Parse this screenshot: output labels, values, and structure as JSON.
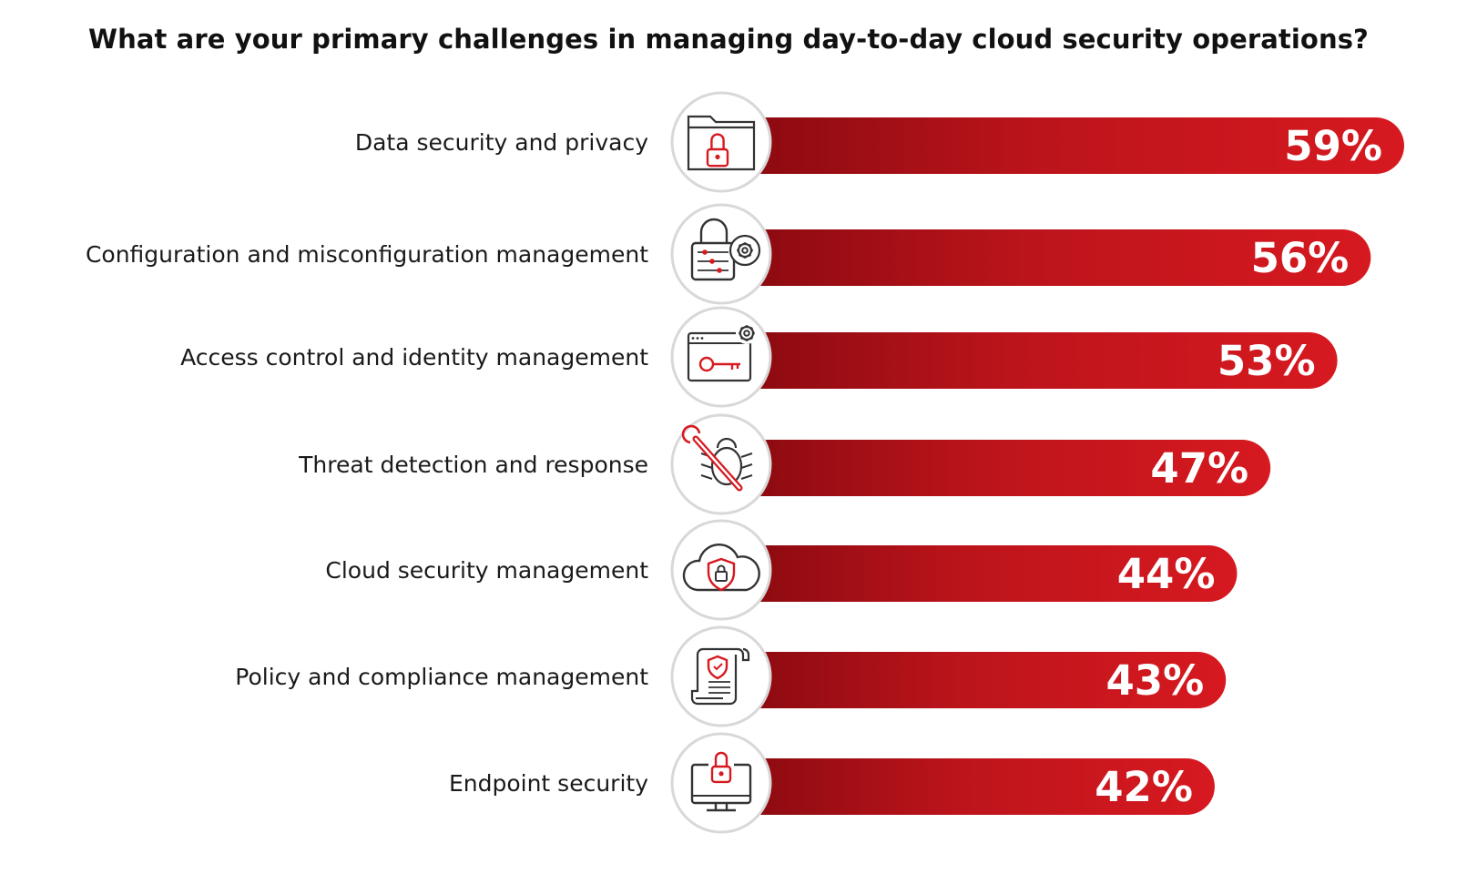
{
  "chart_data": {
    "type": "bar",
    "orientation": "horizontal",
    "title": "What are your primary challenges in managing day-to-day cloud security operations?",
    "categories": [
      "Data security and privacy",
      "Configuration and misconfiguration management",
      "Access control and identity management",
      "Threat detection and response",
      "Cloud security management",
      "Policy and compliance management",
      "Endpoint security"
    ],
    "values": [
      59,
      56,
      53,
      47,
      44,
      43,
      42
    ],
    "value_labels": [
      "59%",
      "56%",
      "53%",
      "47%",
      "44%",
      "43%",
      "42%"
    ],
    "unit": "%",
    "icons": [
      "folder-lock-icon",
      "lock-settings-icon",
      "browser-key-icon",
      "bug-wrench-icon",
      "cloud-shield-icon",
      "document-shield-icon",
      "monitor-lock-icon"
    ],
    "colors": {
      "bar_dark": "#8b0a10",
      "bar_light": "#d71920",
      "icon_accent": "#d71920",
      "icon_stroke": "#333333",
      "circle_border": "#d8d8d8"
    },
    "grid": false,
    "legend": "none"
  }
}
